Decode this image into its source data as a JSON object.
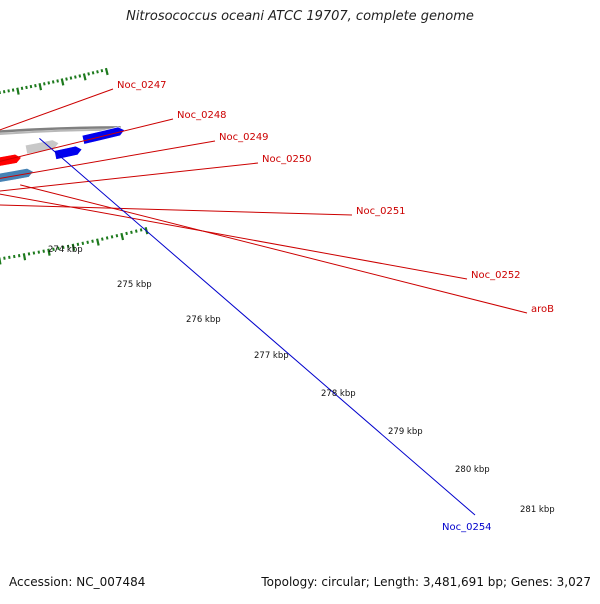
{
  "title": "Nitrosococcus oceani ATCC 19707, complete genome",
  "footer": {
    "accession": "Accession: NC_007484",
    "stats": "Topology: circular; Length: 3,481,691 bp; Genes: 3,027"
  },
  "colors": {
    "backbone": "#808080",
    "tick_green": "#1d7a1d",
    "cds_red": "#ff0000",
    "gene_lime": "#99ee33",
    "gene_darkgreen": "#2e8b2e",
    "gene_steelblue": "#4682b4",
    "gene_blue": "#0000ee",
    "gene_gray": "#c8c8c8",
    "label_red": "#cc0000",
    "label_blue": "#0000cc"
  },
  "ruler": {
    "labels": [
      "274 kbp",
      "275 kbp",
      "276 kbp",
      "277 kbp",
      "278 kbp",
      "279 kbp",
      "280 kbp",
      "281 kbp"
    ]
  },
  "genes": [
    {
      "label": "Noc_0247",
      "color": "label_red"
    },
    {
      "label": "Noc_0248",
      "color": "label_red"
    },
    {
      "label": "Noc_0249",
      "color": "label_red"
    },
    {
      "label": "Noc_0250",
      "color": "label_red"
    },
    {
      "label": "Noc_0251",
      "color": "label_red"
    },
    {
      "label": "Noc_0252",
      "color": "label_red"
    },
    {
      "label": "aroB",
      "color": "label_red"
    },
    {
      "label": "Noc_0254",
      "color": "label_blue"
    }
  ]
}
